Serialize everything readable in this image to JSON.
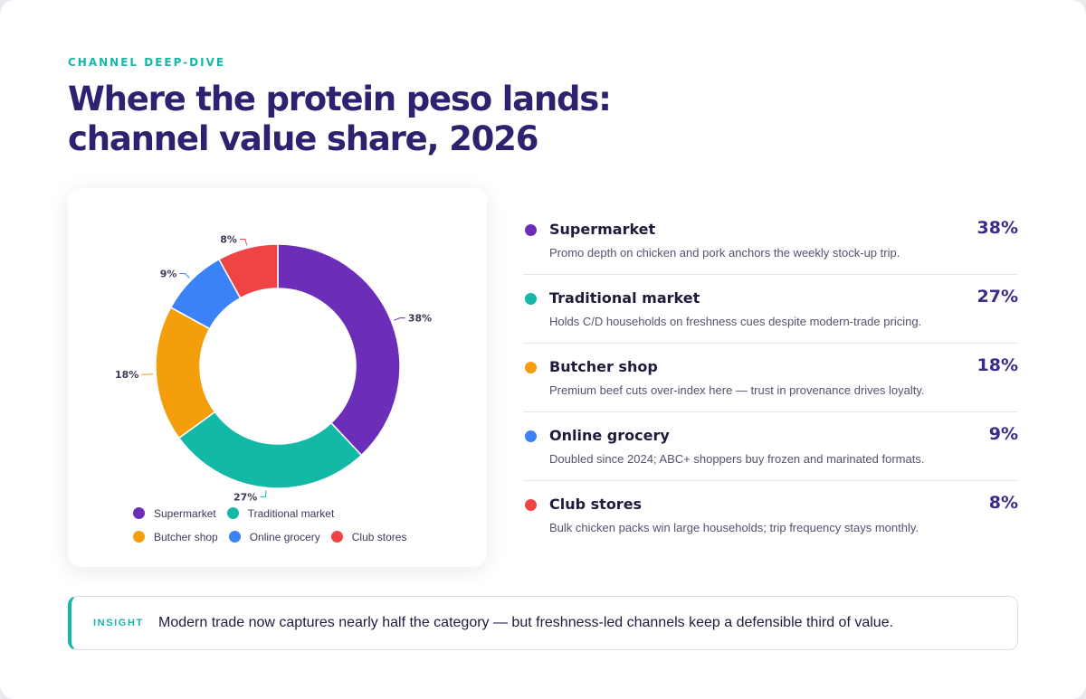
{
  "eyebrow": "CHANNEL DEEP-DIVE",
  "title_line1": "Where the protein peso lands:",
  "title_line2": "channel value share, 2026",
  "chart_data": {
    "type": "pie",
    "subtype": "donut",
    "unit": "%",
    "categories": [
      "Supermarket",
      "Traditional market",
      "Butcher shop",
      "Online grocery",
      "Club stores"
    ],
    "values": [
      38,
      27,
      18,
      9,
      8
    ],
    "labels": [
      "38%",
      "27%",
      "18%",
      "9%",
      "8%"
    ],
    "colors": [
      "#6c2eb9",
      "#14b8a6",
      "#f59e0b",
      "#3b82f6",
      "#ef4444"
    ],
    "start_angle": "12 o'clock",
    "direction": "clockwise",
    "legend_position": "bottom"
  },
  "rows": [
    {
      "name": "Supermarket",
      "value": "38%",
      "desc": "Promo depth on chicken and pork anchors the weekly stock-up trip."
    },
    {
      "name": "Traditional market",
      "value": "27%",
      "desc": "Holds C/D households on freshness cues despite modern-trade pricing."
    },
    {
      "name": "Butcher shop",
      "value": "18%",
      "desc": "Premium beef cuts over-index here — trust in provenance drives loyalty."
    },
    {
      "name": "Online grocery",
      "value": "9%",
      "desc": "Doubled since 2024; ABC+ shoppers buy frozen and marinated formats."
    },
    {
      "name": "Club stores",
      "value": "8%",
      "desc": "Bulk chicken packs win large households; trip frequency stays monthly."
    }
  ],
  "insight": {
    "tag": "INSIGHT",
    "text": "Modern trade now captures nearly half the category — but freshness-led channels keep a defensible third of value."
  }
}
